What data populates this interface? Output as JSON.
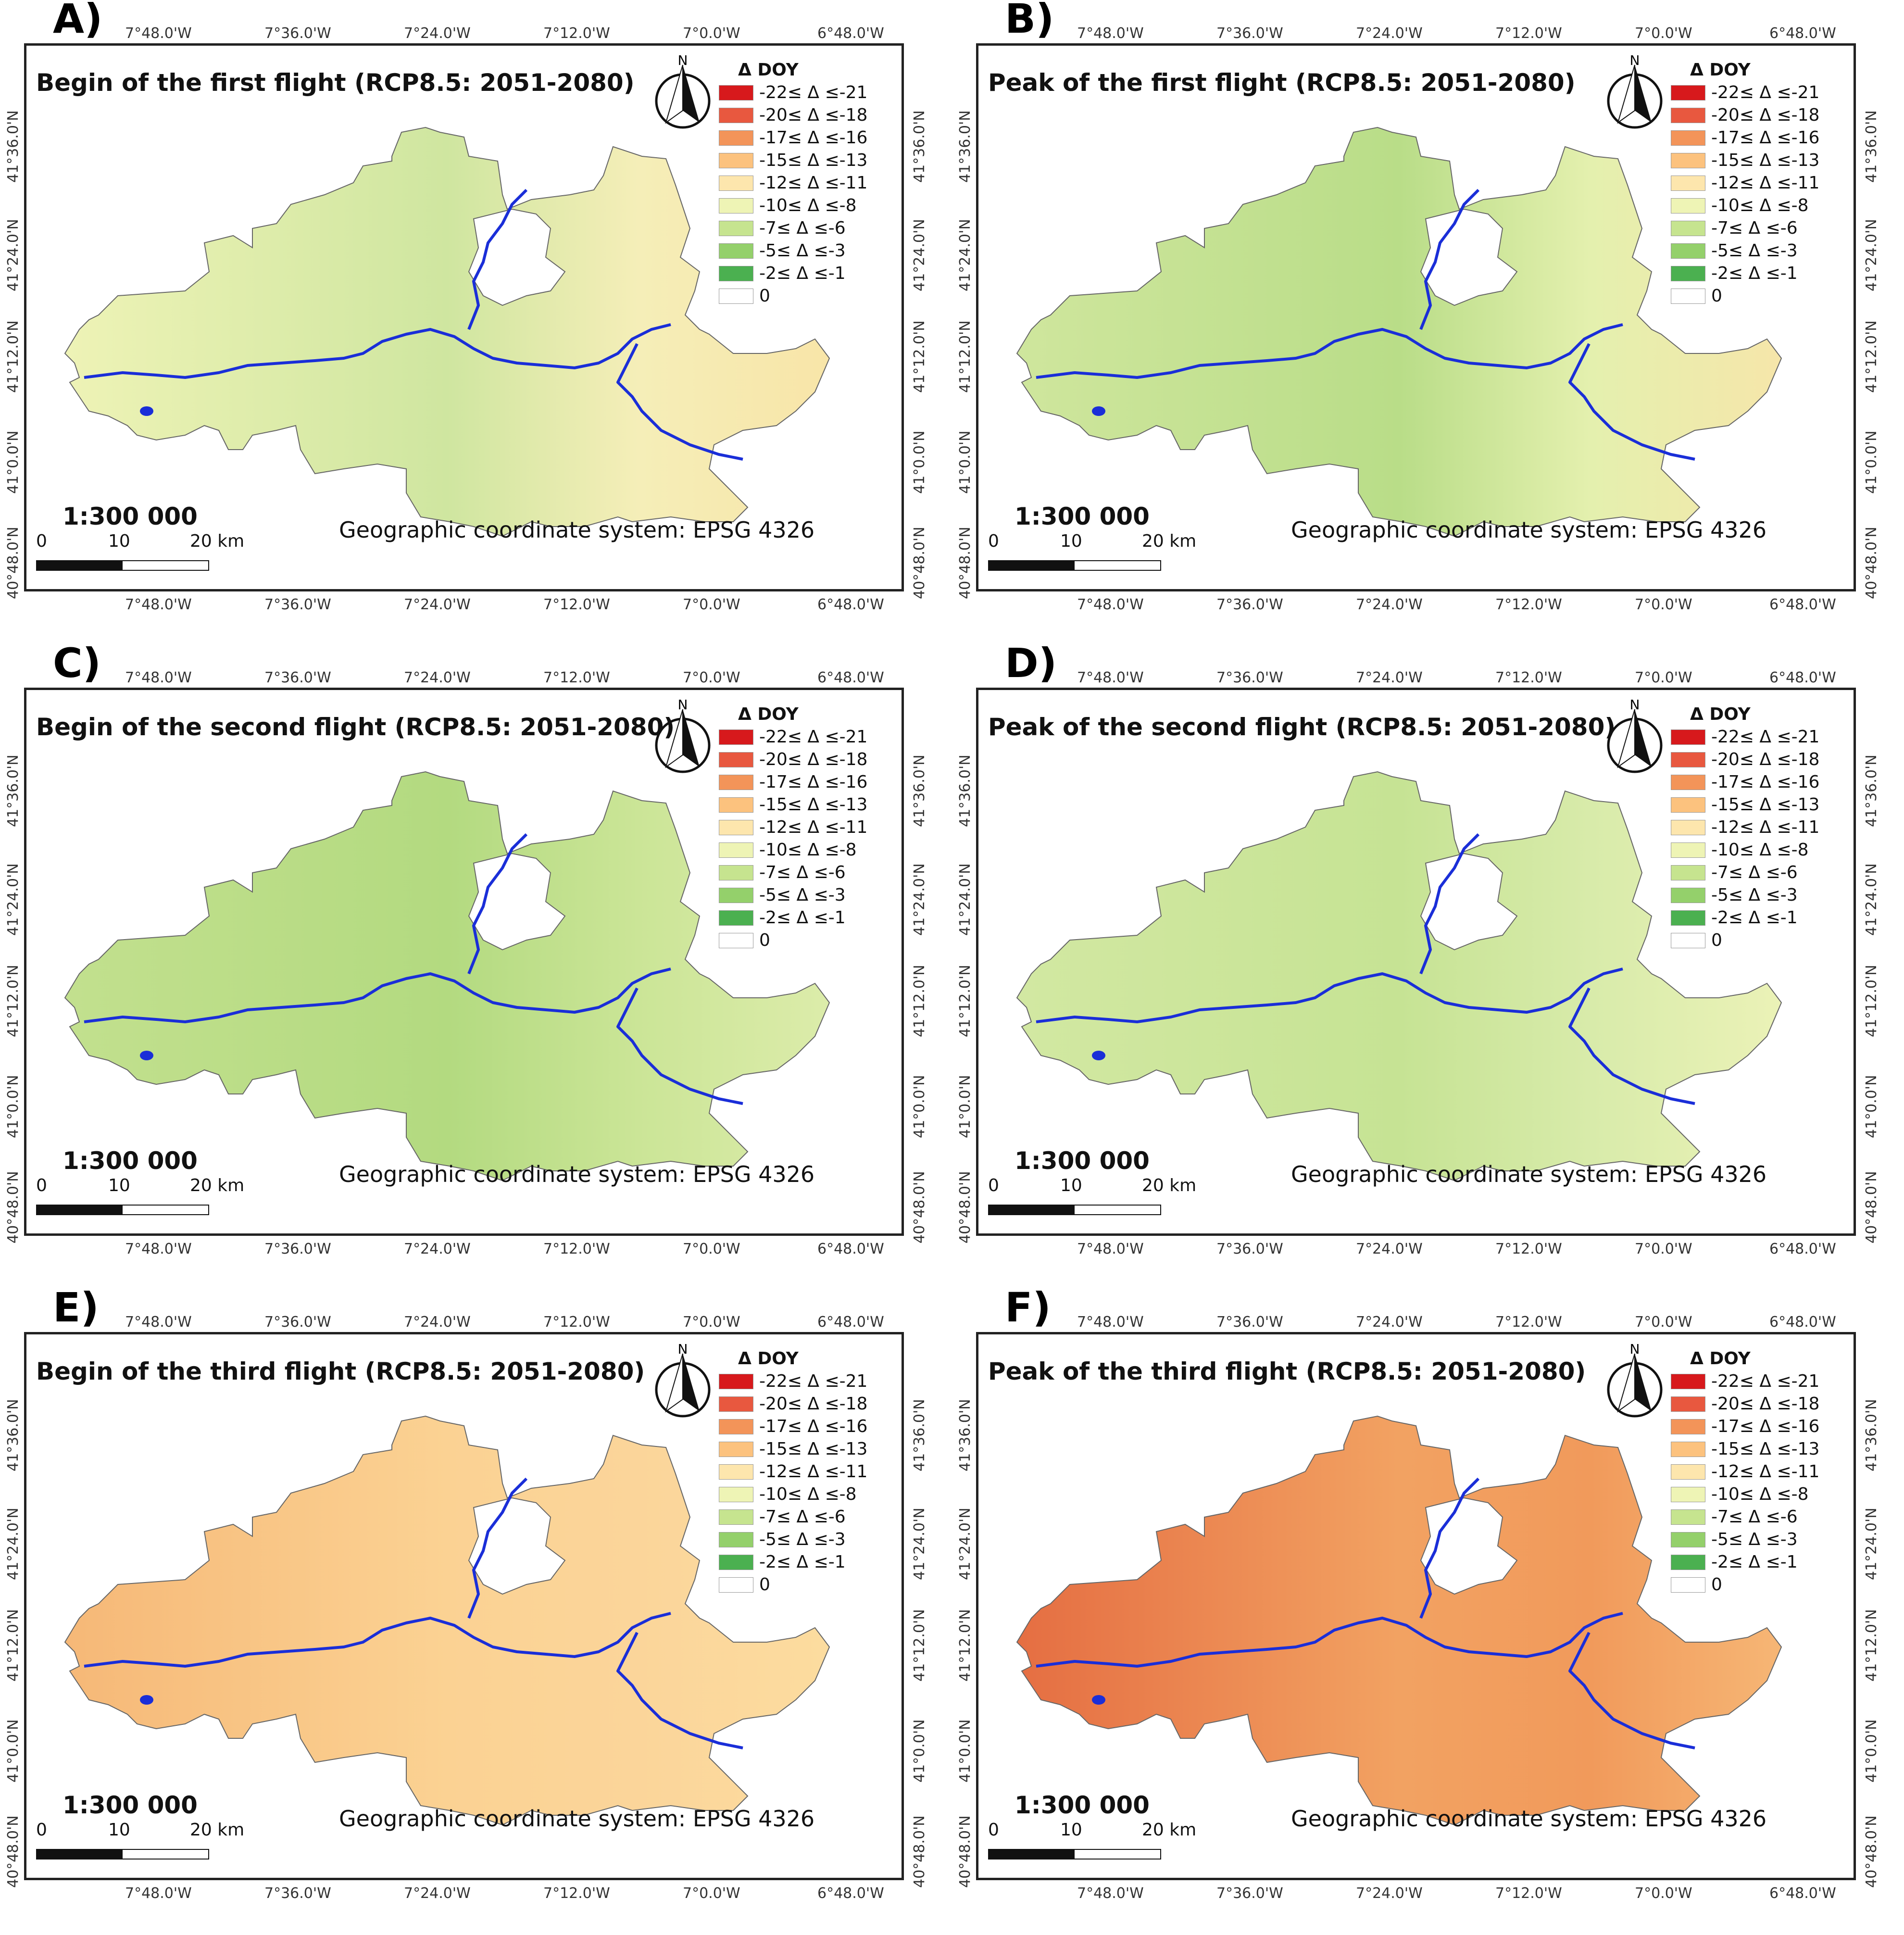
{
  "legend": {
    "title": "Δ DOY",
    "items": [
      {
        "label": "-22≤ Δ ≤-21",
        "color": "#d7191c"
      },
      {
        "label": "-20≤ Δ ≤-18",
        "color": "#e8583f"
      },
      {
        "label": "-17≤ Δ ≤-16",
        "color": "#f39459"
      },
      {
        "label": "-15≤ Δ ≤-13",
        "color": "#fcc27e"
      },
      {
        "label": "-12≤ Δ ≤-11",
        "color": "#fde6ad"
      },
      {
        "label": "-10≤ Δ ≤-8",
        "color": "#eef4b5"
      },
      {
        "label": "-7≤ Δ ≤-6",
        "color": "#c6e48f"
      },
      {
        "label": "-5≤ Δ ≤-3",
        "color": "#94d06b"
      },
      {
        "label": "-2≤ Δ ≤-1",
        "color": "#4bb050"
      },
      {
        "label": "0",
        "color": "#ffffff"
      }
    ]
  },
  "axes": {
    "longitudes": [
      "7°48.0'W",
      "7°36.0'W",
      "7°24.0'W",
      "7°12.0'W",
      "7°0.0'W",
      "6°48.0'W"
    ],
    "latitudes": [
      "41°36.0'N",
      "41°24.0'N",
      "41°12.0'N",
      "41°0.0'N",
      "40°48.0'N"
    ]
  },
  "north_label": "N",
  "scale": {
    "ratio": "1:300 000",
    "ticks": [
      "0",
      "10",
      "20 km"
    ]
  },
  "crs": "Geographic coordinate system: EPSG 4326",
  "panels": [
    {
      "letter": "A)",
      "title": "Begin of the first flight (RCP8.5: 2051-2080)",
      "fill_main": "#f5eeb8",
      "fill_west": "#eef3b6",
      "fill_center": "#cfe6a0",
      "fill_east": "#f8e5a8"
    },
    {
      "letter": "B)",
      "title": "Peak of the first flight (RCP8.5: 2051-2080)",
      "fill_main": "#e4f0ae",
      "fill_west": "#cfe69d",
      "fill_center": "#b9dd88",
      "fill_east": "#f6e6aa"
    },
    {
      "letter": "C)",
      "title": "Begin of the second flight (RCP8.5: 2051-2080)",
      "fill_main": "#cbe597",
      "fill_west": "#c2e08e",
      "fill_center": "#b3da80",
      "fill_east": "#dcecaa"
    },
    {
      "letter": "D)",
      "title": "Peak of the second flight (RCP8.5: 2051-2080)",
      "fill_main": "#d8ebaa",
      "fill_west": "#d2e8a2",
      "fill_center": "#c6e394",
      "fill_east": "#ebf2b7"
    },
    {
      "letter": "E)",
      "title": "Begin of the third flight (RCP8.5: 2051-2080)",
      "fill_main": "#fbd59a",
      "fill_west": "#f6b877",
      "fill_center": "#fbd293",
      "fill_east": "#fcdc9f"
    },
    {
      "letter": "F)",
      "title": "Peak of the third flight (RCP8.5: 2051-2080)",
      "fill_main": "#f19a5b",
      "fill_west": "#e56e42",
      "fill_center": "#f2a262",
      "fill_east": "#f6b675"
    }
  ]
}
